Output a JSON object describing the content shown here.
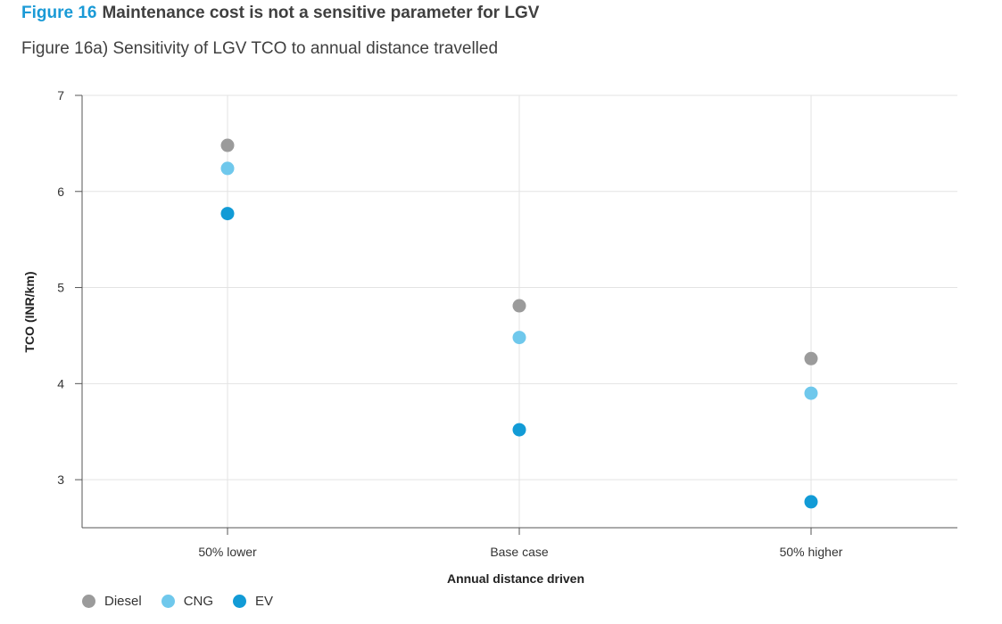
{
  "figure": {
    "number": "Figure 16",
    "title": "Maintenance cost is not a sensitive parameter for LGV",
    "subtitle": "Figure 16a) Sensitivity of LGV TCO to annual distance travelled"
  },
  "chart_data": {
    "type": "scatter",
    "categories": [
      "50% lower",
      "Base case",
      "50% higher"
    ],
    "series": [
      {
        "name": "Diesel",
        "color": "#9b9b9b",
        "values": [
          6.48,
          4.81,
          4.26
        ]
      },
      {
        "name": "CNG",
        "color": "#6fc8ec",
        "values": [
          6.24,
          4.48,
          3.9
        ]
      },
      {
        "name": "EV",
        "color": "#129bd6",
        "values": [
          5.77,
          3.52,
          2.77
        ]
      }
    ],
    "xlabel": "Annual distance driven",
    "ylabel": "TCO (INR/km)",
    "ylim": [
      2.5,
      7
    ],
    "yticks": [
      3,
      4,
      5,
      6,
      7
    ],
    "grid": true,
    "legend_position": "bottom-left"
  }
}
